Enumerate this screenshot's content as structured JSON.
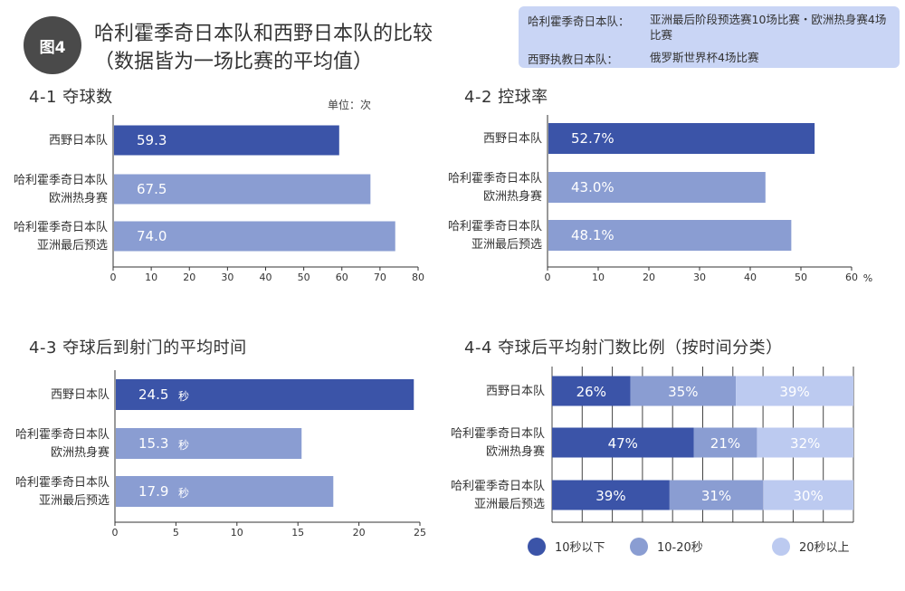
{
  "figure": {
    "badge": "图4",
    "title_line1": "哈利霍季奇日本队和西野日本队的比较",
    "title_line2": "（数据皆为一场比赛的平均值）"
  },
  "info_box": {
    "row1_label": "哈利霍季奇日本队：",
    "row1_value": "亚洲最后阶段预选赛10场比赛・欧洲热身赛4场比赛",
    "row2_label": "西野执教日本队：",
    "row2_value": "俄罗斯世界杯4场比赛"
  },
  "colors": {
    "dark_blue": "#3b54a8",
    "mid_blue": "#8a9dd2",
    "light_blue": "#bccaf0",
    "grid": "#d9d9d9",
    "axis": "#333333"
  },
  "chart_data": [
    {
      "id": "c1",
      "type": "bar",
      "orientation": "horizontal",
      "title": "4-1  夺球数",
      "unit_label": "单位：次",
      "categories": [
        [
          "西野日本队"
        ],
        [
          "哈利霍季奇日本队",
          "欧洲热身赛"
        ],
        [
          "哈利霍季奇日本队",
          "亚洲最后预选"
        ]
      ],
      "values": [
        59.3,
        67.5,
        74.0
      ],
      "value_labels": [
        "59.3",
        "67.5",
        "74.0"
      ],
      "value_suffix": "",
      "xlim": [
        0,
        80
      ],
      "xticks": [
        0,
        10,
        20,
        30,
        40,
        50,
        60,
        70,
        80
      ],
      "axis_suffix": ""
    },
    {
      "id": "c2",
      "type": "bar",
      "orientation": "horizontal",
      "title": "4-2  控球率",
      "categories": [
        [
          "西野日本队"
        ],
        [
          "哈利霍季奇日本队",
          "欧洲热身赛"
        ],
        [
          "哈利霍季奇日本队",
          "亚洲最后预选"
        ]
      ],
      "values": [
        52.7,
        43.0,
        48.1
      ],
      "value_labels": [
        "52.7%",
        "43.0%",
        "48.1%"
      ],
      "value_suffix": "",
      "xlim": [
        0,
        60
      ],
      "xticks": [
        0,
        10,
        20,
        30,
        40,
        50,
        60
      ],
      "axis_suffix": "%"
    },
    {
      "id": "c3",
      "type": "bar",
      "orientation": "horizontal",
      "title": "4-3  夺球后到射门的平均时间",
      "categories": [
        [
          "西野日本队"
        ],
        [
          "哈利霍季奇日本队",
          "欧洲热身赛"
        ],
        [
          "哈利霍季奇日本队",
          "亚洲最后预选"
        ]
      ],
      "values": [
        24.5,
        15.3,
        17.9
      ],
      "value_labels": [
        "24.5",
        "15.3",
        "17.9"
      ],
      "value_suffix": "秒",
      "xlim": [
        0,
        25
      ],
      "xticks": [
        0,
        5,
        10,
        15,
        20,
        25
      ],
      "axis_suffix": ""
    },
    {
      "id": "c4",
      "type": "bar",
      "orientation": "horizontal",
      "stacked": true,
      "title": "4-4  夺球后平均射门数比例（按时间分类）",
      "categories": [
        [
          "西野日本队"
        ],
        [
          "哈利霍季奇日本队",
          "欧洲热身赛"
        ],
        [
          "哈利霍季奇日本队",
          "亚洲最后预选"
        ]
      ],
      "series": [
        {
          "name": "10秒以下",
          "values": [
            26,
            47,
            39
          ],
          "labels": [
            "26%",
            "47%",
            "39%"
          ]
        },
        {
          "name": "10-20秒",
          "values": [
            35,
            21,
            31
          ],
          "labels": [
            "35%",
            "21%",
            "31%"
          ]
        },
        {
          "name": "20秒以上",
          "values": [
            39,
            32,
            30
          ],
          "labels": [
            "39%",
            "32%",
            "30%"
          ]
        }
      ],
      "xlim": [
        0,
        100
      ]
    }
  ]
}
